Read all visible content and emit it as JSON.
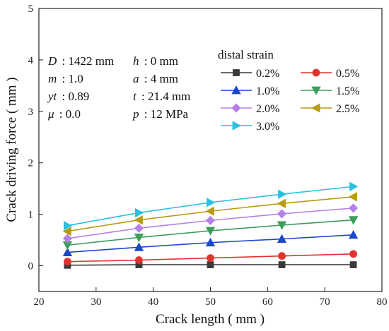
{
  "chart_data": {
    "type": "line",
    "xlabel": "Crack length ( mm )",
    "ylabel": "Crack driving force ( mm )",
    "xlim": [
      20,
      80
    ],
    "ylim": [
      -0.5,
      5
    ],
    "xticks": [
      20,
      30,
      40,
      50,
      60,
      70,
      80
    ],
    "yticks": [
      0,
      1,
      2,
      3,
      4,
      5
    ],
    "grid": false,
    "legend_title": "distal strain",
    "legend_position": "top-right",
    "x": [
      25,
      37.5,
      50,
      62.5,
      75
    ],
    "series": [
      {
        "name": "0.2%",
        "color": "#3a3a3a",
        "marker": "square",
        "values": [
          0.01,
          0.02,
          0.02,
          0.02,
          0.02
        ]
      },
      {
        "name": "0.5%",
        "color": "#e0332e",
        "marker": "circle",
        "values": [
          0.08,
          0.11,
          0.15,
          0.19,
          0.23
        ]
      },
      {
        "name": "1.0%",
        "color": "#1c47c9",
        "marker": "triangle-up",
        "values": [
          0.26,
          0.36,
          0.45,
          0.52,
          0.6
        ]
      },
      {
        "name": "1.5%",
        "color": "#3c9e5c",
        "marker": "triangle-down",
        "values": [
          0.4,
          0.55,
          0.68,
          0.79,
          0.89
        ]
      },
      {
        "name": "2.0%",
        "color": "#b681e6",
        "marker": "diamond",
        "values": [
          0.53,
          0.73,
          0.88,
          1.01,
          1.12
        ]
      },
      {
        "name": "2.5%",
        "color": "#b79b14",
        "marker": "triangle-left",
        "values": [
          0.67,
          0.89,
          1.06,
          1.21,
          1.34
        ]
      },
      {
        "name": "3.0%",
        "color": "#2bbfe0",
        "marker": "triangle-right",
        "values": [
          0.78,
          1.03,
          1.23,
          1.39,
          1.54
        ]
      }
    ],
    "parameters": [
      {
        "key": "D",
        "value": ": 1422 mm"
      },
      {
        "key": "m",
        "value": ": 1.0"
      },
      {
        "key": "yt",
        "value": ": 0.89"
      },
      {
        "key": "μ",
        "value": ": 0.0"
      },
      {
        "key": "h",
        "value": ": 0 mm"
      },
      {
        "key": "a",
        "value": ": 4 mm"
      },
      {
        "key": "t",
        "value": ": 21.4 mm"
      },
      {
        "key": "p",
        "value": ": 12 MPa"
      }
    ]
  }
}
